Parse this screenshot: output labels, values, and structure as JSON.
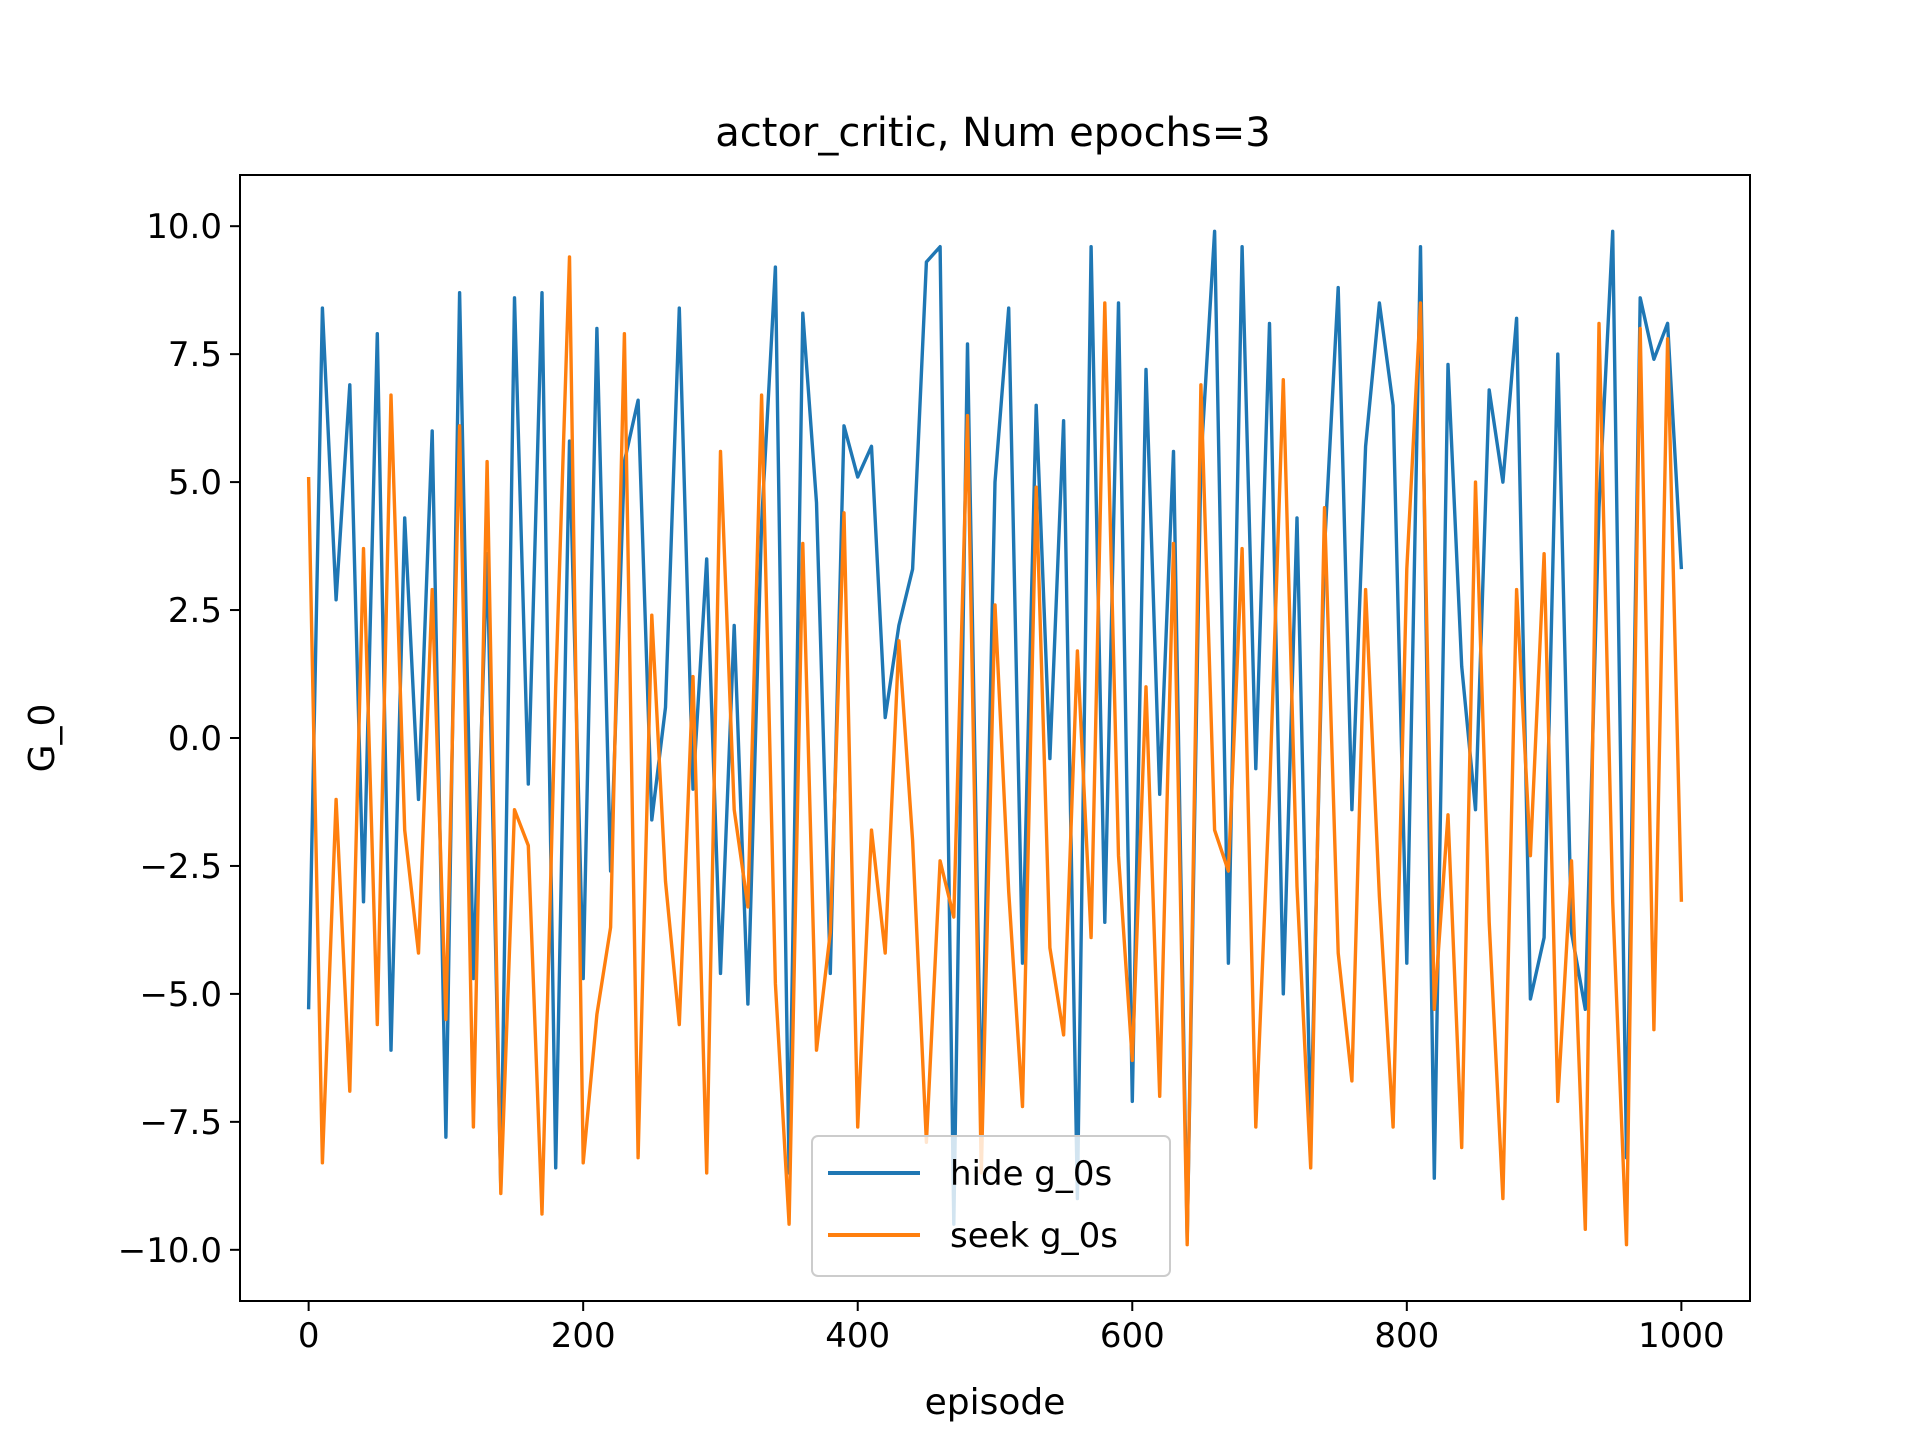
{
  "chart_data": {
    "type": "line",
    "title": "actor_critic, Num epochs=3",
    "xlabel": "episode",
    "ylabel": "G_0",
    "xlim": [
      -50,
      1050
    ],
    "ylim": [
      -11,
      11
    ],
    "x_ticks": [
      0,
      200,
      400,
      600,
      800,
      1000
    ],
    "x_tick_labels": [
      "0",
      "200",
      "400",
      "600",
      "800",
      "1000"
    ],
    "y_ticks": [
      -10,
      -7.5,
      -5,
      -2.5,
      0,
      2.5,
      5,
      7.5,
      10
    ],
    "y_tick_labels": [
      "−10.0",
      "−7.5",
      "−5.0",
      "−2.5",
      "0.0",
      "2.5",
      "5.0",
      "7.5",
      "10.0"
    ],
    "grid": false,
    "legend_position": "lower-center",
    "series": [
      {
        "name": "hide g_0s",
        "color": "#1f77b4",
        "x_start": 0,
        "x_step": 10,
        "values": [
          -5.3,
          8.4,
          2.7,
          6.9,
          -3.2,
          7.9,
          -6.1,
          4.3,
          -1.2,
          6.0,
          -7.8,
          8.7,
          -4.7,
          3.6,
          -8.8,
          8.6,
          -0.9,
          8.7,
          -8.4,
          5.8,
          -4.7,
          8.0,
          -2.6,
          5.4,
          6.6,
          -1.6,
          0.6,
          8.4,
          -1.0,
          3.5,
          -4.6,
          2.2,
          -5.2,
          4.2,
          9.2,
          -8.5,
          8.3,
          4.6,
          -4.6,
          6.1,
          5.1,
          5.7,
          0.4,
          2.2,
          3.3,
          9.3,
          9.6,
          -9.5,
          7.7,
          -7.4,
          5.0,
          8.4,
          -4.4,
          6.5,
          -0.4,
          6.2,
          -9.0,
          9.6,
          -3.6,
          8.5,
          -7.1,
          7.2,
          -1.1,
          5.6,
          -9.8,
          5.4,
          9.9,
          -4.4,
          9.6,
          -0.6,
          8.1,
          -5.0,
          4.3,
          -7.7,
          3.7,
          8.8,
          -1.4,
          5.7,
          8.5,
          6.5,
          -4.4,
          9.6,
          -8.6,
          7.3,
          1.4,
          -1.4,
          6.8,
          5.0,
          8.2,
          -5.1,
          -3.9,
          7.5,
          -3.8,
          -5.3,
          4.5,
          9.9,
          -8.2,
          8.6,
          7.4,
          8.1,
          3.3
        ]
      },
      {
        "name": "seek g_0s",
        "color": "#ff7f0e",
        "x_start": 0,
        "x_step": 10,
        "values": [
          5.1,
          -8.3,
          -1.2,
          -6.9,
          3.7,
          -5.6,
          6.7,
          -1.8,
          -4.2,
          2.9,
          -5.5,
          6.1,
          -7.6,
          5.4,
          -8.9,
          -1.4,
          -2.1,
          -9.3,
          1.0,
          9.4,
          -8.3,
          -5.4,
          -3.7,
          7.9,
          -8.2,
          2.4,
          -2.8,
          -5.6,
          1.2,
          -8.5,
          5.6,
          -1.4,
          -3.3,
          6.7,
          -4.8,
          -9.5,
          3.8,
          -6.1,
          -3.8,
          4.4,
          -7.6,
          -1.8,
          -4.2,
          1.9,
          -2.0,
          -7.9,
          -2.4,
          -3.5,
          6.3,
          -8.5,
          2.6,
          -3.0,
          -7.2,
          4.9,
          -4.1,
          -5.8,
          1.7,
          -3.9,
          8.5,
          -2.3,
          -6.3,
          1.0,
          -7.0,
          3.8,
          -9.9,
          6.9,
          -1.8,
          -2.6,
          3.7,
          -7.6,
          -1.1,
          7.0,
          -2.9,
          -8.4,
          4.5,
          -4.2,
          -6.7,
          2.9,
          -3.1,
          -7.6,
          3.3,
          8.5,
          -5.3,
          -1.5,
          -8.0,
          5.0,
          -3.6,
          -9.0,
          2.9,
          -2.3,
          3.6,
          -7.1,
          -2.4,
          -9.6,
          8.1,
          -3.2,
          -9.9,
          8.0,
          -5.7,
          7.8,
          -3.2
        ]
      }
    ]
  }
}
